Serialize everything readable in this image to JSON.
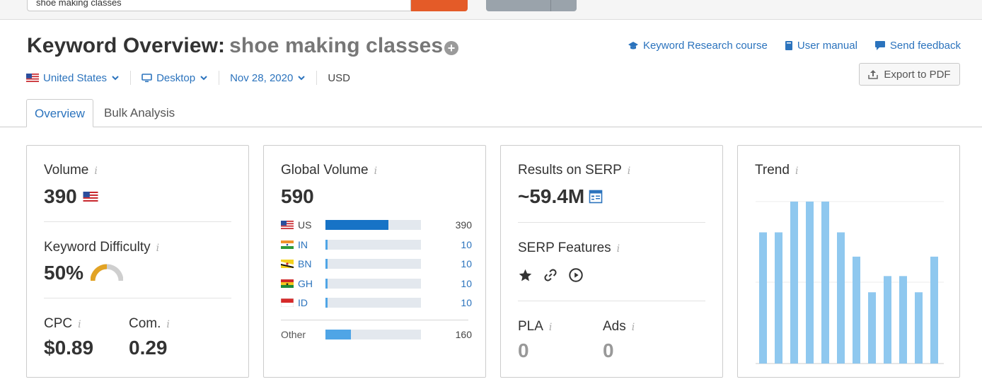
{
  "search": {
    "value": "shoe making classes"
  },
  "header": {
    "title": "Keyword Overview:",
    "keyword": "shoe making classes",
    "links": [
      "Keyword Research course",
      "User manual",
      "Send feedback"
    ],
    "export_label": "Export to PDF"
  },
  "filters": {
    "country": "United States",
    "device": "Desktop",
    "date": "Nov 28, 2020",
    "currency": "USD"
  },
  "tabs": [
    "Overview",
    "Bulk Analysis"
  ],
  "volume_card": {
    "title": "Volume",
    "value": "390",
    "kd_title": "Keyword Difficulty",
    "kd_value": "50%",
    "kd_fraction": 0.5,
    "cpc_title": "CPC",
    "cpc_value": "$0.89",
    "com_title": "Com.",
    "com_value": "0.29"
  },
  "global_card": {
    "title": "Global Volume",
    "value": "590",
    "rows": [
      {
        "code": "US",
        "value": "390",
        "fraction": 0.66
      },
      {
        "code": "IN",
        "value": "10",
        "fraction": 0.02
      },
      {
        "code": "BN",
        "value": "10",
        "fraction": 0.02
      },
      {
        "code": "GH",
        "value": "10",
        "fraction": 0.02
      },
      {
        "code": "ID",
        "value": "10",
        "fraction": 0.02
      }
    ],
    "other": {
      "label": "Other",
      "value": "160",
      "fraction": 0.27
    }
  },
  "serp_card": {
    "title": "Results on SERP",
    "value": "~59.4M",
    "features_title": "SERP Features",
    "features": [
      "star-icon",
      "link-icon",
      "play-icon"
    ],
    "pla_title": "PLA",
    "pla_value": "0",
    "ads_title": "Ads",
    "ads_value": "0"
  },
  "trend_card": {
    "title": "Trend",
    "values": [
      0.81,
      0.81,
      1.0,
      1.0,
      1.0,
      0.81,
      0.66,
      0.44,
      0.54,
      0.54,
      0.44,
      0.66
    ]
  },
  "colors": {
    "link": "#2b73bd",
    "accent": "#e45b28",
    "bar_dark": "#1773c6",
    "bar_light": "#4fa5e6",
    "trend": "#8fc8ef",
    "kd": "#e2a324"
  }
}
